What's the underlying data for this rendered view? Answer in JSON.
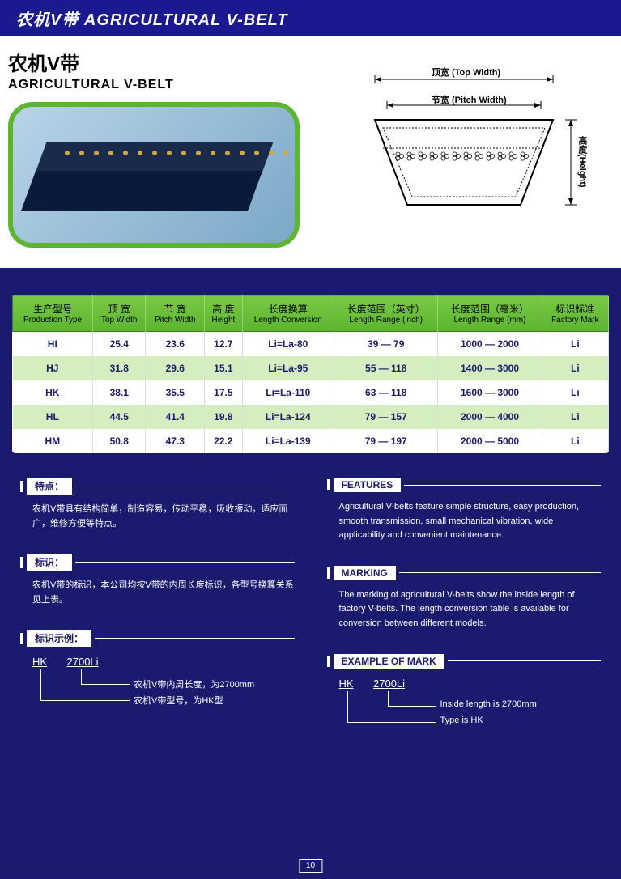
{
  "header": {
    "title": "农机V带 AGRICULTURAL V-BELT"
  },
  "product": {
    "title_cn": "农机V带",
    "title_en": "AGRICULTURAL V-BELT"
  },
  "diagram": {
    "top_width": "顶宽 (Top Width)",
    "pitch_width": "节宽 (Pitch Width)",
    "height": "高度(Height)",
    "colors": {
      "outline": "#000000",
      "fill": "#ffffff",
      "stipple": "#888888"
    }
  },
  "table": {
    "header_bg_top": "#7ac943",
    "header_bg_bottom": "#5cb531",
    "row_odd_bg": "#ffffff",
    "row_even_bg": "#d4eec0",
    "text_color": "#1a1a6e",
    "columns": [
      {
        "cn": "生产型号",
        "en": "Production Type"
      },
      {
        "cn": "顶 宽",
        "en": "Top Width"
      },
      {
        "cn": "节 宽",
        "en": "Pitch Width"
      },
      {
        "cn": "高 度",
        "en": "Height"
      },
      {
        "cn": "长度换算",
        "en": "Length Conversion"
      },
      {
        "cn": "长度范围（英寸）",
        "en": "Length Range (inch)"
      },
      {
        "cn": "长度范围（毫米）",
        "en": "Length Range (mm)"
      },
      {
        "cn": "标识标准",
        "en": "Factory Mark"
      }
    ],
    "rows": [
      [
        "HI",
        "25.4",
        "23.6",
        "12.7",
        "Li=La-80",
        "39 — 79",
        "1000 — 2000",
        "Li"
      ],
      [
        "HJ",
        "31.8",
        "29.6",
        "15.1",
        "Li=La-95",
        "55 — 118",
        "1400 — 3000",
        "Li"
      ],
      [
        "HK",
        "38.1",
        "35.5",
        "17.5",
        "Li=La-110",
        "63 — 118",
        "1600 — 3000",
        "Li"
      ],
      [
        "HL",
        "44.5",
        "41.4",
        "19.8",
        "Li=La-124",
        "79 — 157",
        "2000 — 4000",
        "Li"
      ],
      [
        "HM",
        "50.8",
        "47.3",
        "22.2",
        "Li=La-139",
        "79 — 197",
        "2000 — 5000",
        "Li"
      ]
    ]
  },
  "info_cn": {
    "features_heading": "特点：",
    "features_text": "农机V带具有结构简单，制造容易，传动平稳，吸收振动，适应面广，维修方便等特点。",
    "marking_heading": "标识：",
    "marking_text": "农机V带的标识，本公司均按V带的内周长度标识，各型号换算关系见上表。",
    "example_heading": "标识示例：",
    "example_code1": "HK",
    "example_code2": "2700Li",
    "example_label1": "农机V带内周长度，为2700mm",
    "example_label2": "农机V带型号，为HK型"
  },
  "info_en": {
    "features_heading": "FEATURES",
    "features_text": "Agricultural V-belts feature simple structure, easy production, smooth transmission, small mechanical vibration, wide applicability and convenient maintenance.",
    "marking_heading": "MARKING",
    "marking_text": "The marking of agricultural V-belts show the inside length of factory V-belts. The length conversion table is available for conversion between different models.",
    "example_heading": "EXAMPLE OF MARK",
    "example_code1": "HK",
    "example_code2": "2700Li",
    "example_label1": "Inside length is 2700mm",
    "example_label2": "Type is HK"
  },
  "page_number": "10",
  "colors": {
    "primary_bg": "#1a1a6e",
    "header_bg": "#1a1a8e",
    "accent_green": "#5cb531",
    "white": "#ffffff"
  }
}
